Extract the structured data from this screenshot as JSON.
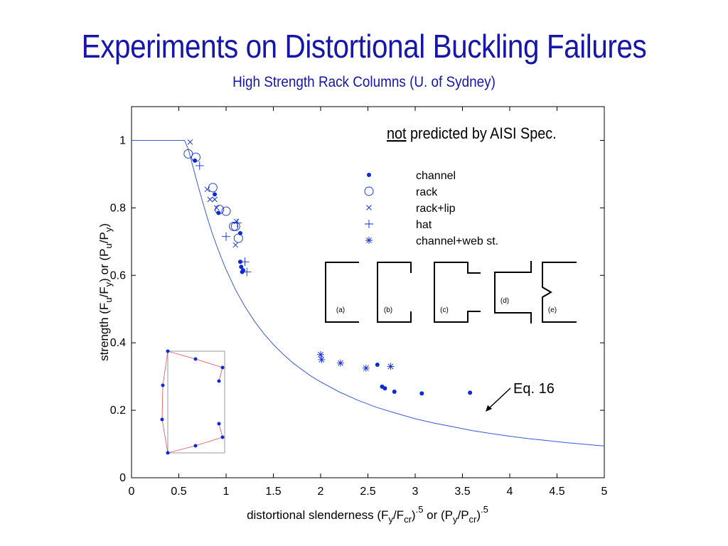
{
  "title": "Experiments on Distortional Buckling Failures",
  "subtitle": "High Strength Rack Columns (U. of Sydney)",
  "colors": {
    "title": "#1616a8",
    "data": "#0a2ad6",
    "curve": "#3a5ad8",
    "section": "#000000",
    "inset_frame": "#9a9a9a",
    "inset_mode": "#e05050"
  },
  "chart_data": {
    "type": "scatter",
    "xlabel": {
      "base": "distortional slenderness (F",
      "s1": "y",
      "t1": "/F",
      "s2": "cr",
      "t2": ")",
      "p1": ".5",
      "t3": " or (P",
      "s3": "y",
      "t4": "/P",
      "s4": "cr",
      "t5": ")",
      "p2": ".5"
    },
    "ylabel": {
      "base": "strength (F",
      "s1": "u",
      "t1": "/F",
      "s2": "y",
      "t2": ") or (P",
      "s3": "u",
      "t3": "/P",
      "s4": "y",
      "t4": ")"
    },
    "xlim": [
      0,
      5
    ],
    "ylim": [
      0,
      1.1
    ],
    "x_ticks": [
      "0",
      "0.5",
      "1",
      "1.5",
      "2",
      "2.5",
      "3",
      "3.5",
      "4",
      "4.5",
      "5"
    ],
    "x_tick_values": [
      0,
      0.5,
      1,
      1.5,
      2,
      2.5,
      3,
      3.5,
      4,
      4.5,
      5
    ],
    "y_ticks": [
      "0",
      "0.2",
      "0.4",
      "0.6",
      "0.8",
      "1"
    ],
    "y_tick_values": [
      0,
      0.2,
      0.4,
      0.6,
      0.8,
      1
    ],
    "grid": false,
    "legend_position": "top-right",
    "note_underlined": "not",
    "note_rest": " predicted by AISI Spec.",
    "curve_label": "Eq. 16",
    "curve": {
      "name": "Eq. 16",
      "x": [
        0,
        0.561,
        0.6,
        0.65,
        0.7,
        0.75,
        0.8,
        0.85,
        0.9,
        0.95,
        1.0,
        1.1,
        1.2,
        1.3,
        1.4,
        1.5,
        1.6,
        1.7,
        1.8,
        1.9,
        2.0,
        2.2,
        2.4,
        2.6,
        2.8,
        3.0,
        3.2,
        3.4,
        3.6,
        3.8,
        4.0,
        4.2,
        4.4,
        4.6,
        4.8,
        5.0
      ],
      "y": [
        1.0,
        1.0,
        0.974,
        0.922,
        0.869,
        0.819,
        0.772,
        0.728,
        0.688,
        0.651,
        0.617,
        0.557,
        0.507,
        0.464,
        0.427,
        0.395,
        0.367,
        0.342,
        0.321,
        0.301,
        0.284,
        0.254,
        0.229,
        0.208,
        0.191,
        0.175,
        0.162,
        0.151,
        0.14,
        0.131,
        0.123,
        0.116,
        0.11,
        0.104,
        0.099,
        0.094
      ]
    },
    "series": [
      {
        "name": "channel",
        "marker": "dot",
        "x": [
          0.67,
          0.88,
          0.92,
          1.15,
          1.15,
          1.16,
          1.17,
          1.18,
          2.6,
          2.65,
          2.68,
          2.78,
          3.07,
          3.58
        ],
        "y": [
          0.94,
          0.84,
          0.785,
          0.725,
          0.64,
          0.625,
          0.61,
          0.615,
          0.335,
          0.27,
          0.265,
          0.255,
          0.25,
          0.252
        ]
      },
      {
        "name": "rack",
        "marker": "circle",
        "x": [
          0.6,
          0.68,
          0.86,
          0.93,
          1.0,
          1.08,
          1.1,
          1.13
        ],
        "y": [
          0.96,
          0.95,
          0.86,
          0.795,
          0.79,
          0.745,
          0.745,
          0.71
        ]
      },
      {
        "name": "rack+lip",
        "marker": "x",
        "x": [
          0.62,
          0.8,
          0.83,
          0.88,
          0.9,
          1.1,
          1.11
        ],
        "y": [
          0.995,
          0.855,
          0.825,
          0.825,
          0.8,
          0.69,
          0.76
        ]
      },
      {
        "name": "hat",
        "marker": "plus",
        "x": [
          0.72,
          1.0,
          1.12,
          1.2,
          1.22
        ],
        "y": [
          0.925,
          0.715,
          0.755,
          0.64,
          0.61
        ]
      },
      {
        "name": "channel+web st.",
        "marker": "star",
        "x": [
          2.0,
          2.01,
          2.21,
          2.48,
          2.74
        ],
        "y": [
          0.365,
          0.35,
          0.34,
          0.325,
          0.33
        ]
      }
    ],
    "section_labels": [
      "(a)",
      "(b)",
      "(c)",
      "(d)",
      "(e)"
    ]
  }
}
